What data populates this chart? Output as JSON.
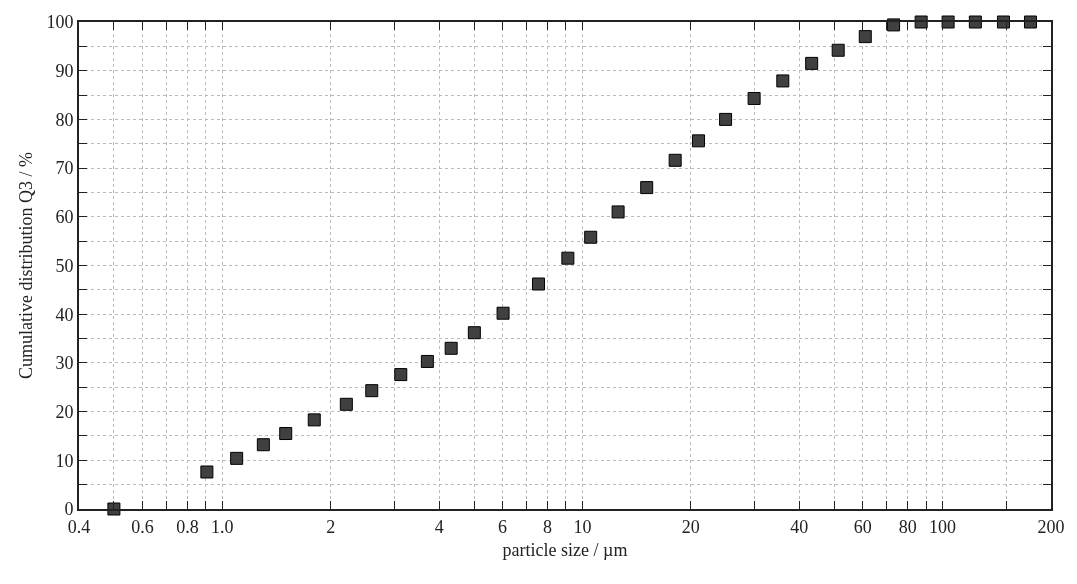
{
  "chart_data": {
    "type": "scatter",
    "xlabel": "particle size / µm",
    "ylabel": "Cumulative distribution Q3 / %",
    "log": "x",
    "marker": "square",
    "grid": true,
    "x": [
      0.5,
      0.906,
      1.096,
      1.3,
      1.5,
      1.8,
      2.21,
      2.6,
      3.13,
      3.71,
      4.32,
      5.01,
      6.02,
      7.55,
      9.11,
      10.54,
      12.56,
      15.08,
      18.09,
      21.0,
      24.97,
      29.97,
      36.0,
      43.3,
      51.3,
      61.0,
      73.1,
      87.2,
      103.6,
      123.3,
      147.6,
      175.4
    ],
    "series": [
      {
        "color": "#404040",
        "values": [
          0,
          7.6,
          10.4,
          13.2,
          15.5,
          18.3,
          21.5,
          24.3,
          27.6,
          30.3,
          33.0,
          36.2,
          40.2,
          46.2,
          51.5,
          55.8,
          61.0,
          66.0,
          71.6,
          75.6,
          80.0,
          84.3,
          87.9,
          91.5,
          94.2,
          97.0,
          99.4,
          100,
          100,
          100,
          100,
          100
        ]
      }
    ],
    "xlim": [
      0.4,
      200
    ],
    "xticks": [
      0.4,
      {
        "value": 0.5,
        "label": null
      },
      0.6,
      {
        "value": 0.7,
        "label": null
      },
      0.8,
      {
        "value": 0.9,
        "label": null
      },
      {
        "value": 1,
        "label": "1.0"
      },
      2,
      {
        "value": 3,
        "label": null
      },
      4,
      {
        "value": 5,
        "label": null
      },
      6,
      {
        "value": 7,
        "label": null
      },
      8,
      {
        "value": 9,
        "label": null
      },
      10,
      20,
      {
        "value": 30,
        "label": null
      },
      40,
      {
        "value": 50,
        "label": null
      },
      60,
      {
        "value": 70,
        "label": null
      },
      80,
      {
        "value": 90,
        "label": null
      },
      100,
      {
        "value": 150,
        "label": null
      },
      200
    ],
    "ylim": [
      0,
      100
    ],
    "yticks": [
      0,
      {
        "value": 5,
        "label": null
      },
      10,
      {
        "value": 15,
        "label": null
      },
      20,
      {
        "value": 25,
        "label": null
      },
      30,
      {
        "value": 35,
        "label": null
      },
      40,
      {
        "value": 45,
        "label": null
      },
      50,
      {
        "value": 55,
        "label": null
      },
      60,
      {
        "value": 65,
        "label": null
      },
      70,
      {
        "value": 75,
        "label": null
      },
      80,
      {
        "value": 85,
        "label": null
      },
      90,
      {
        "value": 95,
        "label": null
      },
      100
    ]
  }
}
